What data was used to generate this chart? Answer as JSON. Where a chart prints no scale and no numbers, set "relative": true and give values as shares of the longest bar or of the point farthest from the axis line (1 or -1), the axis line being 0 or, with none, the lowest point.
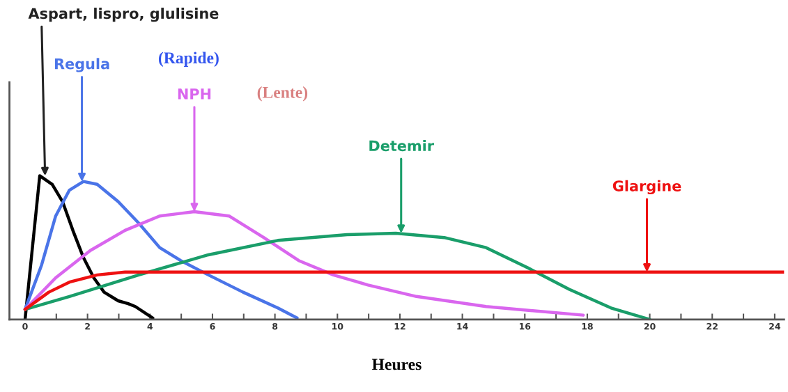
{
  "chart_data": {
    "type": "line",
    "relative": true,
    "xlabel": "Heures",
    "xlim": [
      -0.5,
      24.3
    ],
    "xticks": [
      0,
      {
        "value": 1,
        "label": null
      },
      2,
      {
        "value": 3,
        "label": null
      },
      4,
      {
        "value": 5,
        "label": null
      },
      6,
      {
        "value": 7,
        "label": null
      },
      8,
      {
        "value": 9,
        "label": null
      },
      10,
      {
        "value": 11,
        "label": null
      },
      12,
      {
        "value": 13,
        "label": null
      },
      14,
      {
        "value": 15,
        "label": null
      },
      16,
      {
        "value": 17,
        "label": null
      },
      18,
      {
        "value": 19,
        "label": null
      },
      20,
      {
        "value": 21,
        "label": null
      },
      22,
      {
        "value": 23,
        "label": null
      },
      24
    ],
    "marker": "none",
    "line_style": "solid",
    "series": [
      {
        "color": "#000000",
        "x": [
          0,
          0.47,
          0.87,
          1.2,
          1.53,
          1.87,
          2.2,
          2.53,
          2.98,
          3.3,
          3.53,
          4.09
        ],
        "values": [
          0,
          1.0,
          0.94,
          0.82,
          0.62,
          0.43,
          0.29,
          0.19,
          0.13,
          0.11,
          0.09,
          0.01
        ]
      },
      {
        "color": "#4a74e8",
        "x": [
          0,
          0.53,
          0.98,
          1.42,
          1.87,
          2.31,
          2.98,
          3.64,
          4.31,
          4.98,
          5.87,
          6.98,
          8.09,
          8.71
        ],
        "values": [
          0.07,
          0.38,
          0.72,
          0.9,
          0.96,
          0.94,
          0.82,
          0.67,
          0.5,
          0.41,
          0.31,
          0.19,
          0.08,
          0.01
        ]
      },
      {
        "color": "#d966ee",
        "x": [
          0,
          0.98,
          2.09,
          3.2,
          4.31,
          5.42,
          6.53,
          7.64,
          8.76,
          9.87,
          10.98,
          12.53,
          14.76,
          17.87
        ],
        "values": [
          0.07,
          0.29,
          0.48,
          0.62,
          0.72,
          0.75,
          0.72,
          0.57,
          0.41,
          0.31,
          0.24,
          0.16,
          0.09,
          0.03
        ]
      },
      {
        "color": "#1a9e6a",
        "x": [
          0,
          1.42,
          3.64,
          5.87,
          8.09,
          10.31,
          11.87,
          13.42,
          14.76,
          16.09,
          17.42,
          18.76,
          20
        ],
        "values": [
          0.07,
          0.16,
          0.31,
          0.45,
          0.55,
          0.59,
          0.6,
          0.57,
          0.5,
          0.36,
          0.21,
          0.08,
          0
        ]
      },
      {
        "color": "#ee1111",
        "x": [
          0,
          0.76,
          1.42,
          2.31,
          3.2,
          24.3
        ],
        "values": [
          0.07,
          0.19,
          0.26,
          0.31,
          0.33,
          0.33
        ]
      }
    ],
    "annotations": [
      {
        "text": "Aspart, lispro, glulisine",
        "x": 0.64,
        "y": 1.0
      },
      {
        "text": "Regula",
        "x": 1.82,
        "y": 0.96
      },
      {
        "text": "NPH",
        "x": 5.42,
        "y": 0.75
      },
      {
        "text": "Detemir",
        "x": 12.04,
        "y": 0.6
      },
      {
        "text": "Glargine",
        "x": 19.91,
        "y": 0.33
      },
      "(Rapide)",
      "(Lente)"
    ]
  }
}
